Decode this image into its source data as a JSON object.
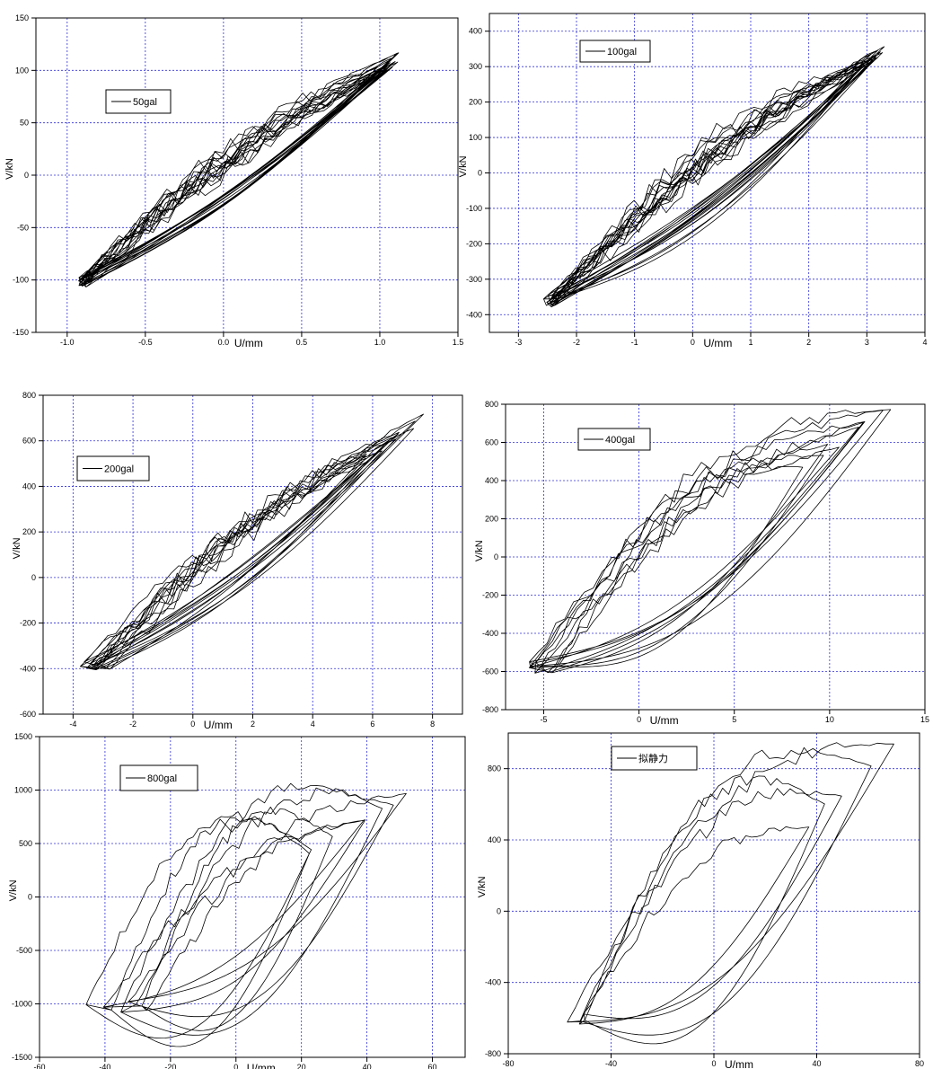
{
  "chart_data": [
    {
      "type": "line",
      "legend": "50gal",
      "legend_position": "top-left",
      "xlabel": "U/mm",
      "ylabel": "V/kN",
      "xlim": [
        -1.2,
        1.5
      ],
      "ylim": [
        -150,
        150
      ],
      "xticks": [
        -1.0,
        -0.5,
        0.0,
        0.5,
        1.0,
        1.5
      ],
      "xtick_labels": [
        "-1.0",
        "-0.5",
        "0.0",
        "0.5",
        "1.0",
        "1.5"
      ],
      "yticks": [
        -150,
        -100,
        -50,
        0,
        50,
        100,
        150
      ],
      "ytick_labels": [
        "-150",
        "-100",
        "-50",
        "0",
        "50",
        "100",
        "150"
      ],
      "grid": true,
      "hysteresis": {
        "peak_pos": [
          1.12,
          112
        ],
        "peak_neg": [
          -0.93,
          -107
        ],
        "n_loops": 16,
        "ratio": 0.06,
        "peak_variation": 0.14
      }
    },
    {
      "type": "line",
      "legend": "100gal",
      "legend_position": "top-left",
      "xlabel": "U/mm",
      "ylabel": "V/kN",
      "xlim": [
        -3.5,
        4
      ],
      "ylim": [
        -450,
        450
      ],
      "xticks": [
        -3,
        -2,
        -1,
        0,
        1,
        2,
        3,
        4
      ],
      "xtick_labels": [
        "-3",
        "-2",
        "-1",
        "0",
        "1",
        "2",
        "3",
        "4"
      ],
      "yticks": [
        -400,
        -300,
        -200,
        -100,
        0,
        100,
        200,
        300,
        400
      ],
      "ytick_labels": [
        "-400",
        "-300",
        "-200",
        "-100",
        "0",
        "100",
        "200",
        "300",
        "400"
      ],
      "grid": true,
      "hysteresis": {
        "peak_pos": [
          3.3,
          345
        ],
        "peak_neg": [
          -2.6,
          -380
        ],
        "n_loops": 16,
        "ratio": 0.09,
        "peak_variation": 0.2
      }
    },
    {
      "type": "line",
      "legend": "200gal",
      "legend_position": "top-left",
      "xlabel": "U/mm",
      "ylabel": "V/kN",
      "xlim": [
        -5,
        9
      ],
      "ylim": [
        -600,
        800
      ],
      "xticks": [
        -4,
        -2,
        0,
        2,
        4,
        6,
        8
      ],
      "xtick_labels": [
        "-4",
        "-2",
        "0",
        "2",
        "4",
        "6",
        "8"
      ],
      "yticks": [
        -600,
        -400,
        -200,
        0,
        200,
        400,
        600,
        800
      ],
      "ytick_labels": [
        "-600",
        "-400",
        "-200",
        "0",
        "200",
        "400",
        "600",
        "800"
      ],
      "grid": true,
      "hysteresis": {
        "peak_pos": [
          7.7,
          700
        ],
        "peak_neg": [
          -3.8,
          -410
        ],
        "n_loops": 12,
        "ratio": 0.07,
        "peak_variation": 0.45
      }
    },
    {
      "type": "line",
      "legend": "400gal",
      "legend_position": "top-left",
      "xlabel": "U/mm",
      "ylabel": "V/kN",
      "xlim": [
        -7,
        15
      ],
      "ylim": [
        -800,
        800
      ],
      "xticks": [
        -5,
        0,
        5,
        10,
        15
      ],
      "xtick_labels": [
        "-5",
        "0",
        "5",
        "10",
        "15"
      ],
      "yticks": [
        -800,
        -600,
        -400,
        -200,
        0,
        200,
        400,
        600,
        800
      ],
      "ytick_labels": [
        "-800",
        "-600",
        "-400",
        "-200",
        "0",
        "200",
        "400",
        "600",
        "800"
      ],
      "grid": true,
      "hysteresis": {
        "peak_pos": [
          13.2,
          760
        ],
        "peak_neg": [
          -5.8,
          -610
        ],
        "n_loops": 9,
        "ratio": 0.17,
        "peak_variation": 0.5
      }
    },
    {
      "type": "line",
      "legend": "800gal",
      "legend_position": "top-left",
      "xlabel": "U/mm",
      "ylabel": "V/kN",
      "xlim": [
        -60,
        70
      ],
      "ylim": [
        -1500,
        1500
      ],
      "xticks": [
        -60,
        -40,
        -20,
        0,
        20,
        40,
        60
      ],
      "xtick_labels": [
        "-60",
        "-40",
        "-20",
        "0",
        "20",
        "40",
        "60"
      ],
      "yticks": [
        -1500,
        -1000,
        -500,
        0,
        500,
        1000,
        1500
      ],
      "ytick_labels": [
        "-1500",
        "-1000",
        "-500",
        "0",
        "500",
        "1000",
        "1500"
      ],
      "grid": true,
      "hysteresis": {
        "peak_pos": [
          52,
          960
        ],
        "peak_neg": [
          -50,
          -1080
        ],
        "n_loops": 8,
        "ratio": 0.22,
        "peak_variation": 0.8
      }
    },
    {
      "type": "line",
      "legend": "拟静力",
      "legend_position": "top-left",
      "xlabel": "U/mm",
      "ylabel": "V/kN",
      "xlim": [
        -80,
        80
      ],
      "ylim": [
        -800,
        1000
      ],
      "xticks": [
        -80,
        -40,
        0,
        40,
        80
      ],
      "xtick_labels": [
        "-80",
        "-40",
        "0",
        "40",
        "80"
      ],
      "yticks": [
        -800,
        -400,
        0,
        400,
        800
      ],
      "ytick_labels": [
        "-800",
        "-400",
        "0",
        "400",
        "800"
      ],
      "grid": true,
      "hysteresis": {
        "peak_pos": [
          70,
          940
        ],
        "peak_neg": [
          -66,
          -640
        ],
        "n_loops": 5,
        "ratio": 0.25,
        "peak_variation": 0.6
      }
    }
  ]
}
